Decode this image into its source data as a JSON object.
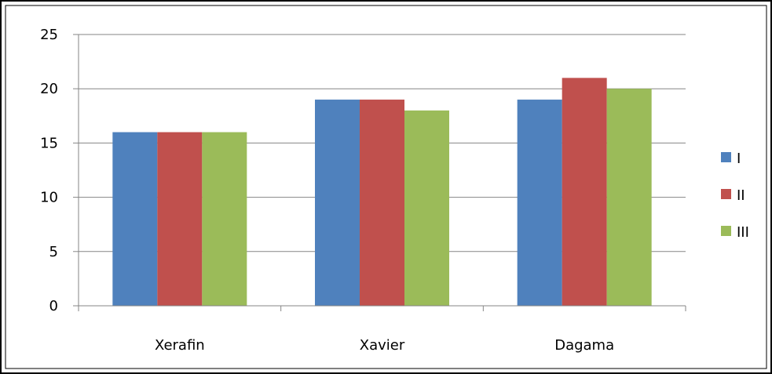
{
  "chart_data": {
    "type": "bar",
    "categories": [
      "Xerafin",
      "Xavier",
      "Dagama"
    ],
    "series": [
      {
        "name": "I",
        "values": [
          16,
          19,
          19
        ],
        "color": "#4F81BD"
      },
      {
        "name": "II",
        "values": [
          16,
          19,
          21
        ],
        "color": "#C0504D"
      },
      {
        "name": "III",
        "values": [
          16,
          18,
          20
        ],
        "color": "#9BBB59"
      }
    ],
    "y_ticks": [
      "0",
      "5",
      "10",
      "15",
      "20",
      "25"
    ],
    "ylim": [
      0,
      25
    ],
    "grid": true,
    "legend_position": "right",
    "title": "",
    "xlabel": "",
    "ylabel": ""
  }
}
